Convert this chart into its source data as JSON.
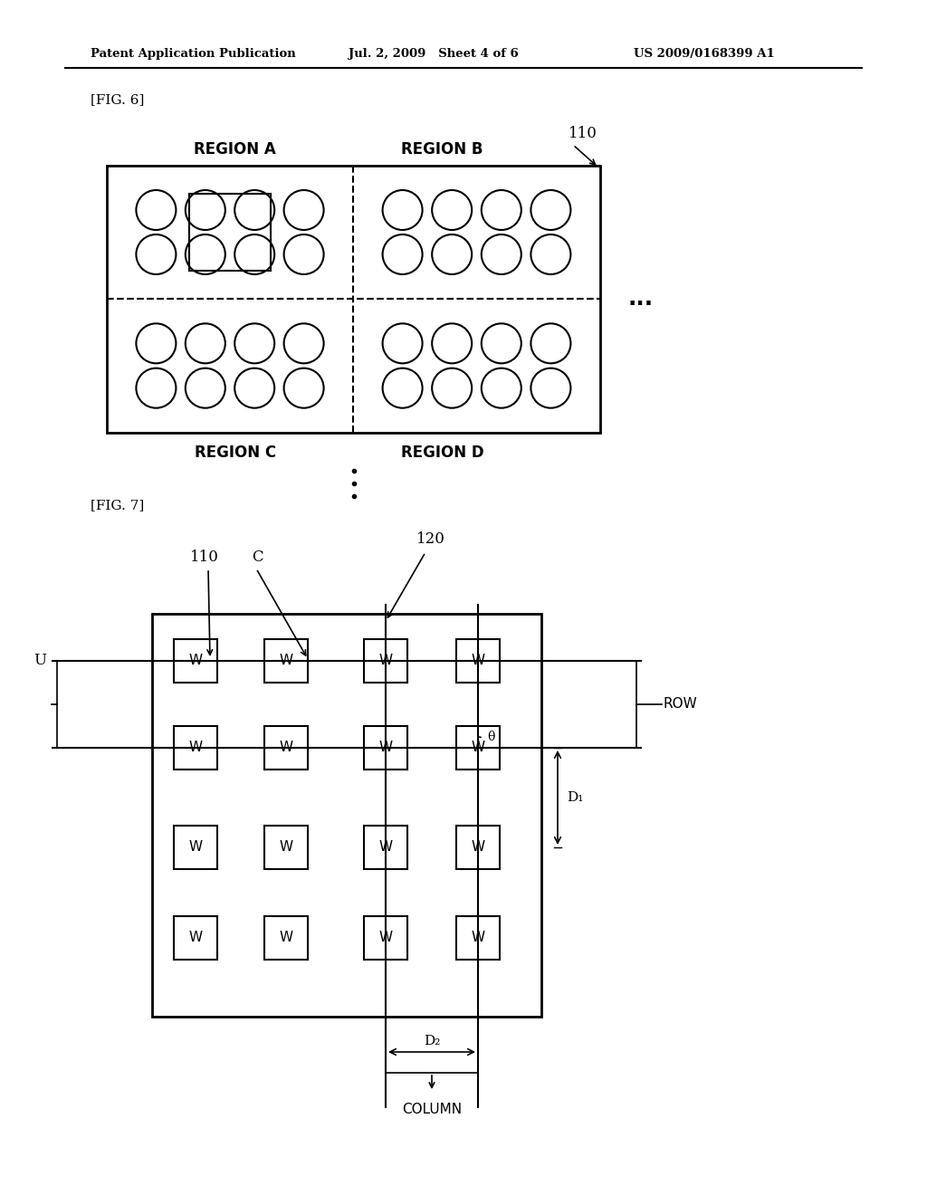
{
  "header_left": "Patent Application Publication",
  "header_mid": "Jul. 2, 2009   Sheet 4 of 6",
  "header_right": "US 2009/0168399 A1",
  "fig6_label": "[FIG. 6]",
  "fig7_label": "[FIG. 7]",
  "label_110_fig6": "110",
  "label_region_a": "REGION A",
  "label_region_b": "REGION B",
  "label_region_c": "REGION C",
  "label_region_d": "REGION D",
  "label_110_fig7": "110",
  "label_C": "C",
  "label_120": "120",
  "label_U": "U",
  "label_ROW": "ROW",
  "label_theta": "θ",
  "label_D1": "D₁",
  "label_D2": "D₂",
  "label_COLUMN": "COLUMN",
  "label_W": "W",
  "bg_color": "#ffffff",
  "line_color": "#000000"
}
